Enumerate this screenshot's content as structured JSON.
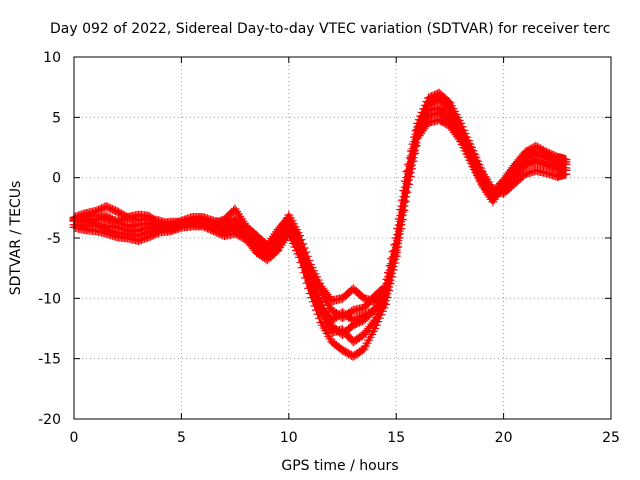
{
  "chart_data": {
    "type": "scatter",
    "title": "Day 092 of 2022, Sidereal Day-to-day VTEC variation (SDTVAR) for receiver terc",
    "xlabel": "GPS time / hours",
    "ylabel": "SDTVAR / TECUs",
    "xlim": [
      0,
      25
    ],
    "ylim": [
      -20,
      10
    ],
    "xticks": [
      0,
      5,
      10,
      15,
      20,
      25
    ],
    "xtick_labels": [
      "0",
      "5",
      "10",
      "15",
      "20",
      "25"
    ],
    "yticks": [
      -20,
      -15,
      -10,
      -5,
      0,
      5,
      10
    ],
    "ytick_labels": [
      "-20",
      "-15",
      "-10",
      "-5",
      "0",
      "5",
      "10"
    ],
    "grid": true,
    "marker": "+",
    "series_color": "#ff0000",
    "series": [
      {
        "name": "track-1",
        "x": [
          0,
          0.5,
          1,
          1.5,
          2,
          2.5,
          3,
          3.5,
          4,
          4.5,
          5,
          5.5,
          6,
          6.5,
          7,
          7.5,
          8,
          8.5,
          9,
          9.5,
          10,
          10.5,
          11,
          11.5,
          12,
          12.5,
          13,
          13.5,
          14,
          14.5,
          15,
          15.5,
          16,
          16.5,
          17,
          17.5,
          18,
          18.5,
          19,
          19.5,
          20,
          20.5,
          21,
          21.5,
          22,
          22.5,
          22.9
        ],
        "y": [
          -3.3,
          -3.0,
          -2.8,
          -2.4,
          -2.8,
          -3.3,
          -3.5,
          -3.4,
          -3.6,
          -3.9,
          -3.8,
          -3.6,
          -3.4,
          -3.8,
          -3.5,
          -2.6,
          -4.0,
          -4.8,
          -5.6,
          -4.3,
          -3.3,
          -5.2,
          -7.8,
          -9.5,
          -11.0,
          -11.6,
          -11.0,
          -10.8,
          -9.8,
          -9.0,
          -5.0,
          0.5,
          4.5,
          6.6,
          7.0,
          6.2,
          4.5,
          2.5,
          0.5,
          -1.0,
          -1.3,
          -0.5,
          0.3,
          0.6,
          0.4,
          0.1,
          0.3
        ]
      },
      {
        "name": "track-2",
        "x": [
          0,
          0.5,
          1,
          1.5,
          2,
          2.5,
          3,
          3.5,
          4,
          4.5,
          5,
          5.5,
          6,
          6.5,
          7,
          7.5,
          8,
          8.5,
          9,
          9.5,
          10,
          10.5,
          11,
          11.5,
          12,
          12.5,
          13,
          13.5,
          14,
          14.5,
          15,
          15.5,
          16,
          16.5,
          17,
          17.5,
          18,
          18.5,
          19,
          19.5,
          20,
          20.5,
          21,
          21.5,
          22,
          22.5,
          22.9
        ],
        "y": [
          -3.6,
          -3.6,
          -3.8,
          -4.0,
          -4.1,
          -4.4,
          -4.4,
          -4.1,
          -4.1,
          -4.3,
          -4.0,
          -3.7,
          -3.8,
          -4.2,
          -4.3,
          -4.0,
          -4.6,
          -5.4,
          -6.3,
          -5.3,
          -4.0,
          -5.6,
          -8.4,
          -10.3,
          -12.3,
          -13.0,
          -12.2,
          -11.8,
          -10.9,
          -9.8,
          -6.0,
          -0.5,
          3.8,
          5.6,
          5.8,
          5.0,
          3.6,
          1.6,
          -0.3,
          -1.6,
          -0.8,
          0.3,
          1.2,
          1.5,
          1.2,
          0.9,
          0.8
        ]
      },
      {
        "name": "track-3",
        "x": [
          0,
          0.5,
          1,
          1.5,
          2,
          2.5,
          3,
          3.5,
          4,
          4.5,
          5,
          5.5,
          6,
          6.5,
          7,
          7.5,
          8,
          8.5,
          9,
          9.5,
          10,
          10.5,
          11,
          11.5,
          12,
          12.5,
          13,
          13.5,
          14,
          14.5,
          15,
          15.5,
          16,
          16.5,
          17,
          17.5,
          18,
          18.5,
          19,
          19.5,
          20,
          20.5,
          21,
          21.5,
          22,
          22.5,
          22.9
        ],
        "y": [
          -4.1,
          -4.3,
          -4.4,
          -4.6,
          -4.9,
          -5.0,
          -5.2,
          -4.9,
          -4.5,
          -4.4,
          -4.1,
          -4.0,
          -4.0,
          -4.4,
          -4.8,
          -4.6,
          -5.1,
          -6.2,
          -6.8,
          -6.0,
          -4.6,
          -6.6,
          -9.6,
          -12.0,
          -13.6,
          -14.3,
          -14.8,
          -14.2,
          -12.5,
          -10.5,
          -6.5,
          -1.2,
          3.3,
          4.6,
          4.8,
          4.3,
          3.0,
          1.2,
          -0.6,
          -2.0,
          -0.5,
          1.0,
          2.1,
          2.6,
          2.1,
          1.7,
          1.5
        ]
      },
      {
        "name": "track-4",
        "x": [
          0,
          0.5,
          1,
          1.5,
          2,
          2.5,
          3,
          3.5,
          4,
          4.5,
          5,
          5.5,
          6,
          6.5,
          7,
          7.5,
          8,
          8.5,
          9,
          9.5,
          10,
          10.5,
          11,
          11.5,
          12,
          12.5,
          13,
          13.5,
          14,
          14.5,
          15,
          15.5,
          16,
          16.5,
          17,
          17.5,
          18,
          18.5,
          19,
          19.5,
          20,
          20.5,
          21,
          21.5,
          22,
          22.5,
          22.9
        ],
        "y": [
          -3.5,
          -3.2,
          -3.1,
          -3.4,
          -3.6,
          -3.3,
          -3.1,
          -3.2,
          -3.9,
          -4.0,
          -3.6,
          -3.3,
          -3.3,
          -3.6,
          -3.8,
          -3.4,
          -4.3,
          -5.1,
          -5.8,
          -4.8,
          -3.1,
          -4.8,
          -7.2,
          -9.0,
          -10.2,
          -10.0,
          -9.2,
          -10.0,
          -10.3,
          -9.3,
          -5.5,
          0.0,
          4.2,
          6.2,
          6.8,
          6.0,
          4.2,
          2.3,
          0.3,
          -1.2,
          -0.2,
          1.0,
          1.8,
          2.1,
          1.8,
          1.5,
          1.3
        ]
      },
      {
        "name": "track-5",
        "x": [
          0,
          0.5,
          1,
          1.5,
          2,
          2.5,
          3,
          3.5,
          4,
          4.5,
          5,
          5.5,
          6,
          6.5,
          7,
          7.5,
          8,
          8.5,
          9,
          9.5,
          10,
          10.5,
          11,
          11.5,
          12,
          12.5,
          13,
          13.5,
          14,
          14.5,
          15,
          15.5,
          16,
          16.5,
          17,
          17.5,
          18,
          18.5,
          19,
          19.5,
          20,
          20.5,
          21,
          21.5,
          22,
          22.5,
          22.9
        ],
        "y": [
          -3.9,
          -4.0,
          -3.9,
          -4.3,
          -4.6,
          -4.7,
          -4.8,
          -4.5,
          -4.2,
          -4.1,
          -3.9,
          -3.8,
          -3.9,
          -4.1,
          -4.5,
          -4.3,
          -4.8,
          -5.8,
          -6.5,
          -5.7,
          -4.4,
          -6.0,
          -9.0,
          -11.2,
          -12.8,
          -12.6,
          -13.6,
          -13.0,
          -11.8,
          -10.2,
          -6.2,
          -0.8,
          3.5,
          5.1,
          5.4,
          4.7,
          3.3,
          1.4,
          -0.5,
          -1.8,
          -0.6,
          0.7,
          1.6,
          2.0,
          1.6,
          1.3,
          1.1
        ]
      },
      {
        "name": "track-6",
        "x": [
          0,
          0.5,
          1,
          1.5,
          2,
          2.5,
          3,
          3.5,
          4,
          4.5,
          5,
          5.5,
          6,
          6.5,
          7,
          7.5,
          8,
          8.5,
          9,
          9.5,
          10,
          10.5,
          11,
          11.5,
          12,
          12.5,
          13,
          13.5,
          14,
          14.5,
          15,
          15.5,
          16,
          16.5,
          17,
          17.5,
          18,
          18.5,
          19,
          19.5,
          20,
          20.5,
          21,
          21.5,
          22,
          22.5,
          22.9
        ],
        "y": [
          -3.4,
          -3.4,
          -3.5,
          -3.2,
          -3.7,
          -4.0,
          -3.9,
          -3.8,
          -3.8,
          -3.7,
          -3.7,
          -3.5,
          -3.6,
          -3.9,
          -4.1,
          -3.8,
          -4.4,
          -5.6,
          -6.0,
          -5.0,
          -3.6,
          -5.4,
          -8.8,
          -10.8,
          -11.8,
          -11.2,
          -11.8,
          -11.4,
          -11.0,
          -9.6,
          -5.8,
          -0.3,
          4.0,
          6.0,
          6.5,
          5.6,
          3.9,
          2.0,
          0.0,
          -1.4,
          -1.0,
          0.1,
          1.0,
          1.3,
          1.0,
          0.7,
          0.6
        ]
      }
    ]
  }
}
